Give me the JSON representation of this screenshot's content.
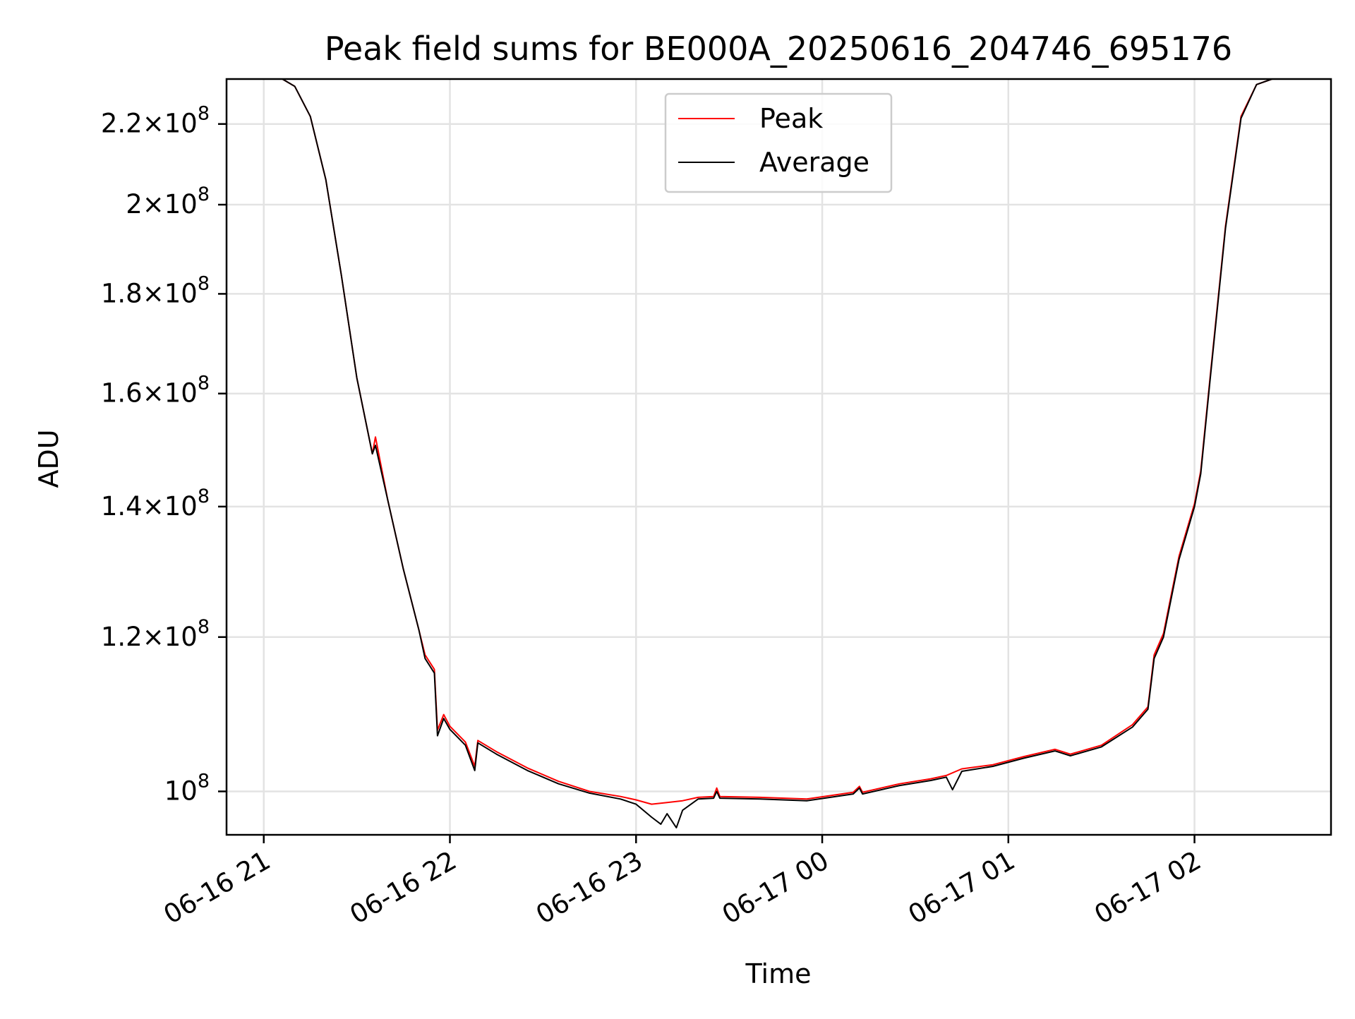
{
  "chart_data": {
    "type": "line",
    "title": "Peak field sums for BE000A_20250616_204746_695176",
    "xlabel": "Time",
    "ylabel": "ADU",
    "y_scale": "log",
    "grid": true,
    "legend_position": "upper-center",
    "xlim": [
      "2025-06-16 20:48",
      "2025-06-17 02:44"
    ],
    "ylim": [
      95000000,
      232000000
    ],
    "x_ticks": [
      {
        "value": "2025-06-16 21:00",
        "label": "06-16 21"
      },
      {
        "value": "2025-06-16 22:00",
        "label": "06-16 22"
      },
      {
        "value": "2025-06-16 23:00",
        "label": "06-16 23"
      },
      {
        "value": "2025-06-17 00:00",
        "label": "06-17 00"
      },
      {
        "value": "2025-06-17 01:00",
        "label": "06-17 01"
      },
      {
        "value": "2025-06-17 02:00",
        "label": "06-17 02"
      }
    ],
    "y_ticks": [
      {
        "value": 100000000,
        "mantissa": "",
        "exponent": "8"
      },
      {
        "value": 120000000,
        "mantissa": "1.2",
        "exponent": "8"
      },
      {
        "value": 140000000,
        "mantissa": "1.4",
        "exponent": "8"
      },
      {
        "value": 160000000,
        "mantissa": "1.6",
        "exponent": "8"
      },
      {
        "value": 180000000,
        "mantissa": "1.8",
        "exponent": "8"
      },
      {
        "value": 200000000,
        "mantissa": "2",
        "exponent": "8"
      },
      {
        "value": 220000000,
        "mantissa": "2.2",
        "exponent": "8"
      }
    ],
    "series": [
      {
        "name": "Peak",
        "color": "#ff0000",
        "points": [
          [
            "2025-06-16 20:48",
            232000000
          ],
          [
            "2025-06-16 21:06",
            232000000
          ],
          [
            "2025-06-16 21:10",
            230000000
          ],
          [
            "2025-06-16 21:15",
            222000000
          ],
          [
            "2025-06-16 21:20",
            206000000
          ],
          [
            "2025-06-16 21:25",
            184000000
          ],
          [
            "2025-06-16 21:30",
            163000000
          ],
          [
            "2025-06-16 21:35",
            149000000
          ],
          [
            "2025-06-16 21:36",
            152000000
          ],
          [
            "2025-06-16 21:40",
            141000000
          ],
          [
            "2025-06-16 21:45",
            130000000
          ],
          [
            "2025-06-16 21:50",
            121000000
          ],
          [
            "2025-06-16 21:52",
            117500000
          ],
          [
            "2025-06-16 21:55",
            115500000
          ],
          [
            "2025-06-16 21:56",
            107500000
          ],
          [
            "2025-06-16 21:58",
            109500000
          ],
          [
            "2025-06-16 22:00",
            108000000
          ],
          [
            "2025-06-16 22:05",
            106000000
          ],
          [
            "2025-06-16 22:08",
            103000000
          ],
          [
            "2025-06-16 22:09",
            106200000
          ],
          [
            "2025-06-16 22:15",
            104800000
          ],
          [
            "2025-06-16 22:25",
            102800000
          ],
          [
            "2025-06-16 22:35",
            101200000
          ],
          [
            "2025-06-16 22:45",
            100000000
          ],
          [
            "2025-06-16 22:55",
            99400000
          ],
          [
            "2025-06-16 23:00",
            99000000
          ],
          [
            "2025-06-16 23:05",
            98500000
          ],
          [
            "2025-06-16 23:10",
            98700000
          ],
          [
            "2025-06-16 23:15",
            98900000
          ],
          [
            "2025-06-16 23:20",
            99300000
          ],
          [
            "2025-06-16 23:25",
            99400000
          ],
          [
            "2025-06-16 23:26",
            100400000
          ],
          [
            "2025-06-16 23:27",
            99400000
          ],
          [
            "2025-06-16 23:40",
            99300000
          ],
          [
            "2025-06-16 23:55",
            99100000
          ],
          [
            "2025-06-17 00:10",
            99900000
          ],
          [
            "2025-06-17 00:12",
            100600000
          ],
          [
            "2025-06-17 00:13",
            99900000
          ],
          [
            "2025-06-17 00:25",
            100900000
          ],
          [
            "2025-06-17 00:35",
            101500000
          ],
          [
            "2025-06-17 00:40",
            101900000
          ],
          [
            "2025-06-17 00:45",
            102700000
          ],
          [
            "2025-06-17 00:55",
            103200000
          ],
          [
            "2025-06-17 01:05",
            104200000
          ],
          [
            "2025-06-17 01:15",
            105100000
          ],
          [
            "2025-06-17 01:20",
            104500000
          ],
          [
            "2025-06-17 01:30",
            105600000
          ],
          [
            "2025-06-17 01:40",
            108200000
          ],
          [
            "2025-06-17 01:45",
            110500000
          ],
          [
            "2025-06-17 01:47",
            117500000
          ],
          [
            "2025-06-17 01:50",
            120500000
          ],
          [
            "2025-06-17 01:55",
            132000000
          ],
          [
            "2025-06-17 02:00",
            140500000
          ],
          [
            "2025-06-17 02:02",
            146000000
          ],
          [
            "2025-06-17 02:05",
            163000000
          ],
          [
            "2025-06-17 02:10",
            195000000
          ],
          [
            "2025-06-17 02:15",
            222000000
          ],
          [
            "2025-06-17 02:20",
            230500000
          ],
          [
            "2025-06-17 02:25",
            232000000
          ],
          [
            "2025-06-17 02:44",
            232000000
          ]
        ]
      },
      {
        "name": "Average",
        "color": "#000000",
        "points": [
          [
            "2025-06-16 20:48",
            232000000
          ],
          [
            "2025-06-16 21:06",
            232000000
          ],
          [
            "2025-06-16 21:10",
            230000000
          ],
          [
            "2025-06-16 21:15",
            222000000
          ],
          [
            "2025-06-16 21:20",
            206000000
          ],
          [
            "2025-06-16 21:25",
            184000000
          ],
          [
            "2025-06-16 21:30",
            163000000
          ],
          [
            "2025-06-16 21:35",
            149000000
          ],
          [
            "2025-06-16 21:36",
            150500000
          ],
          [
            "2025-06-16 21:40",
            141000000
          ],
          [
            "2025-06-16 21:45",
            130000000
          ],
          [
            "2025-06-16 21:50",
            121000000
          ],
          [
            "2025-06-16 21:52",
            117000000
          ],
          [
            "2025-06-16 21:55",
            115000000
          ],
          [
            "2025-06-16 21:56",
            106800000
          ],
          [
            "2025-06-16 21:58",
            109000000
          ],
          [
            "2025-06-16 22:00",
            107600000
          ],
          [
            "2025-06-16 22:05",
            105600000
          ],
          [
            "2025-06-16 22:08",
            102500000
          ],
          [
            "2025-06-16 22:09",
            105900000
          ],
          [
            "2025-06-16 22:15",
            104500000
          ],
          [
            "2025-06-16 22:25",
            102500000
          ],
          [
            "2025-06-16 22:35",
            100900000
          ],
          [
            "2025-06-16 22:45",
            99800000
          ],
          [
            "2025-06-16 22:55",
            99100000
          ],
          [
            "2025-06-16 23:00",
            98500000
          ],
          [
            "2025-06-16 23:05",
            97000000
          ],
          [
            "2025-06-16 23:08",
            96200000
          ],
          [
            "2025-06-16 23:10",
            97400000
          ],
          [
            "2025-06-16 23:13",
            95800000
          ],
          [
            "2025-06-16 23:15",
            97800000
          ],
          [
            "2025-06-16 23:20",
            99100000
          ],
          [
            "2025-06-16 23:25",
            99200000
          ],
          [
            "2025-06-16 23:26",
            100000000
          ],
          [
            "2025-06-16 23:27",
            99200000
          ],
          [
            "2025-06-16 23:40",
            99100000
          ],
          [
            "2025-06-16 23:55",
            98900000
          ],
          [
            "2025-06-17 00:10",
            99700000
          ],
          [
            "2025-06-17 00:12",
            100400000
          ],
          [
            "2025-06-17 00:13",
            99700000
          ],
          [
            "2025-06-17 00:25",
            100700000
          ],
          [
            "2025-06-17 00:35",
            101300000
          ],
          [
            "2025-06-17 00:40",
            101700000
          ],
          [
            "2025-06-17 00:42",
            100200000
          ],
          [
            "2025-06-17 00:45",
            102400000
          ],
          [
            "2025-06-17 00:55",
            103000000
          ],
          [
            "2025-06-17 01:05",
            104000000
          ],
          [
            "2025-06-17 01:15",
            104900000
          ],
          [
            "2025-06-17 01:20",
            104300000
          ],
          [
            "2025-06-17 01:30",
            105400000
          ],
          [
            "2025-06-17 01:40",
            107900000
          ],
          [
            "2025-06-17 01:45",
            110200000
          ],
          [
            "2025-06-17 01:47",
            117000000
          ],
          [
            "2025-06-17 01:50",
            120000000
          ],
          [
            "2025-06-17 01:55",
            131500000
          ],
          [
            "2025-06-17 02:00",
            140000000
          ],
          [
            "2025-06-17 02:02",
            145500000
          ],
          [
            "2025-06-17 02:05",
            162500000
          ],
          [
            "2025-06-17 02:10",
            194500000
          ],
          [
            "2025-06-17 02:15",
            221500000
          ],
          [
            "2025-06-17 02:20",
            230500000
          ],
          [
            "2025-06-17 02:25",
            232000000
          ],
          [
            "2025-06-17 02:44",
            232000000
          ]
        ]
      }
    ]
  }
}
